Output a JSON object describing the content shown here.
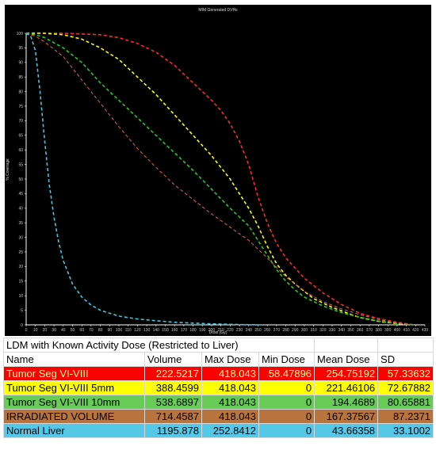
{
  "colors": {
    "background": "#000000",
    "axis": "#ffffff",
    "tick_text": "#c8c8c8",
    "title_text": "#dcdcdc"
  },
  "chart_data": {
    "type": "line",
    "title": "MIM Generated DVHs",
    "xlabel": "Dose (Gy)",
    "ylabel": "% Coverage",
    "xlim": [
      0,
      430
    ],
    "ylim": [
      0,
      100
    ],
    "xticks": [
      0,
      10,
      20,
      30,
      40,
      50,
      60,
      70,
      80,
      90,
      100,
      110,
      120,
      130,
      140,
      150,
      160,
      170,
      180,
      190,
      200,
      210,
      220,
      230,
      240,
      250,
      260,
      270,
      280,
      290,
      300,
      310,
      320,
      330,
      340,
      350,
      360,
      370,
      380,
      390,
      400,
      410,
      420,
      430
    ],
    "yticks": [
      0,
      5,
      10,
      15,
      20,
      25,
      30,
      35,
      40,
      45,
      50,
      55,
      60,
      65,
      70,
      75,
      80,
      85,
      90,
      95,
      100
    ],
    "grid": false,
    "legend": "none",
    "series": [
      {
        "color": "#ff2a2a",
        "dash": "dashed",
        "x": [
          0,
          40,
          80,
          100,
          120,
          140,
          160,
          180,
          200,
          210,
          220,
          230,
          240,
          250,
          260,
          270,
          280,
          290,
          300,
          310,
          320,
          330,
          340,
          350,
          360,
          370,
          380,
          390,
          400,
          410,
          418
        ],
        "y": [
          100,
          100,
          99.5,
          98.5,
          96.5,
          93.5,
          89,
          83,
          77,
          73.5,
          69,
          63,
          55,
          44,
          35,
          28,
          23,
          19.5,
          16,
          13.5,
          11,
          9,
          7,
          5.5,
          4,
          3,
          2.2,
          1.5,
          0.9,
          0.4,
          0
        ]
      },
      {
        "color": "#ffff00",
        "dash": "dashed",
        "x": [
          0,
          20,
          40,
          60,
          80,
          100,
          120,
          140,
          160,
          180,
          200,
          220,
          240,
          250,
          260,
          270,
          280,
          290,
          300,
          310,
          320,
          330,
          340,
          350,
          360,
          380,
          400,
          418
        ],
        "y": [
          100,
          100,
          99.5,
          98,
          95,
          91,
          85,
          79,
          72,
          65,
          58,
          50,
          40,
          34,
          27,
          21,
          17,
          14,
          11.5,
          9,
          7.5,
          6,
          4.8,
          3.6,
          2.5,
          1.2,
          0.4,
          0
        ]
      },
      {
        "color": "#22cc22",
        "dash": "dashed",
        "x": [
          0,
          10,
          20,
          40,
          60,
          80,
          100,
          120,
          140,
          160,
          180,
          200,
          220,
          240,
          250,
          260,
          270,
          280,
          290,
          300,
          320,
          340,
          360,
          380,
          400,
          418
        ],
        "y": [
          100,
          99.5,
          98.5,
          95,
          90,
          83,
          77,
          71,
          65,
          59,
          53,
          46.5,
          40,
          34,
          29,
          24,
          19,
          15,
          12,
          9.5,
          6.5,
          4.2,
          2.6,
          1.3,
          0.5,
          0
        ]
      },
      {
        "color": "#e2674a",
        "dash": "dashed",
        "x": [
          0,
          10,
          20,
          40,
          60,
          80,
          100,
          120,
          140,
          160,
          180,
          200,
          220,
          240,
          260,
          280,
          300,
          320,
          340,
          360,
          380,
          400,
          418
        ],
        "y": [
          100,
          99,
          97,
          92,
          84,
          76,
          68,
          60.5,
          54,
          48,
          43,
          38,
          33.5,
          29,
          23,
          16.5,
          11.5,
          8,
          5.5,
          3.5,
          1.8,
          0.6,
          0
        ]
      },
      {
        "color": "#3ec8e0",
        "dash": "dashed",
        "x": [
          0,
          5,
          10,
          15,
          20,
          25,
          30,
          35,
          40,
          50,
          60,
          70,
          80,
          100,
          120,
          140,
          160,
          180,
          200,
          230,
          253
        ],
        "y": [
          100,
          99,
          94,
          80,
          63,
          48,
          37,
          28.5,
          22,
          14,
          9.5,
          6.8,
          5,
          3,
          2,
          1.4,
          0.9,
          0.6,
          0.35,
          0.1,
          0
        ]
      }
    ]
  },
  "table": {
    "title": "LDM with Known Activity Dose (Restricted to Liver)",
    "headers": [
      "Name",
      "Volume",
      "Max Dose",
      "Min Dose",
      "Mean Dose",
      "SD"
    ],
    "rows": [
      {
        "name": "Tumor  Seg VI-VIII",
        "volume": "222.5217",
        "max_dose": "418.043",
        "min_dose": "58.47896",
        "mean_dose": "254.75192",
        "sd": "57.33632",
        "bg": "#ff0000",
        "fg": "#ffff99"
      },
      {
        "name": "Tumor  Seg VI-VIII 5mm",
        "volume": "388.4599",
        "max_dose": "418.043",
        "min_dose": "0",
        "mean_dose": "221.46106",
        "sd": "72.67882",
        "bg": "#ffff00",
        "fg": "#000000"
      },
      {
        "name": "Tumor  Seg VI-VIII 10mm",
        "volume": "538.6897",
        "max_dose": "418.043",
        "min_dose": "0",
        "mean_dose": "194.4689",
        "sd": "80.65881",
        "bg": "#66cc55",
        "fg": "#000000"
      },
      {
        "name": "IRRADIATED VOLUME",
        "volume": "714.4587",
        "max_dose": "418.043",
        "min_dose": "0",
        "mean_dose": "167.37567",
        "sd": "87.2371",
        "bg": "#b8743c",
        "fg": "#000000"
      },
      {
        "name": "Normal Liver",
        "volume": "1195.878",
        "max_dose": "252.8412",
        "min_dose": "0",
        "mean_dose": "43.66358",
        "sd": "33.1002",
        "bg": "#55c8e8",
        "fg": "#000000"
      }
    ]
  }
}
